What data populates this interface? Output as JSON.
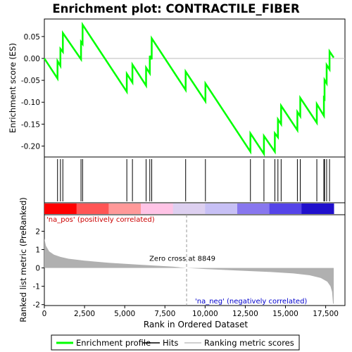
{
  "chart_data": {
    "type": "line",
    "title": "Enrichment plot: CONTRACTILE_FIBER",
    "top_panel": {
      "ylabel": "Enrichment score (ES)",
      "ylim": [
        -0.225,
        0.09
      ],
      "yticks": [
        0.05,
        0.0,
        -0.05,
        -0.1,
        -0.15,
        -0.2
      ],
      "ytick_labels": [
        "0.05",
        "0.00",
        "-0.05",
        "-0.10",
        "-0.15",
        "-0.20"
      ],
      "series": [
        {
          "name": "Enrichment profile",
          "color": "#00ff00",
          "points": [
            [
              0,
              0.0
            ],
            [
              820,
              -0.046
            ],
            [
              820,
              -0.006
            ],
            [
              1000,
              -0.017
            ],
            [
              1000,
              0.022
            ],
            [
              1150,
              0.015
            ],
            [
              1150,
              0.058
            ],
            [
              2280,
              -0.002
            ],
            [
              2280,
              0.038
            ],
            [
              2380,
              0.033
            ],
            [
              2380,
              0.077
            ],
            [
              5130,
              -0.076
            ],
            [
              5130,
              -0.035
            ],
            [
              5480,
              -0.055
            ],
            [
              5480,
              -0.014
            ],
            [
              6330,
              -0.062
            ],
            [
              6330,
              -0.021
            ],
            [
              6560,
              -0.034
            ],
            [
              6560,
              0.006
            ],
            [
              6680,
              -0.002
            ],
            [
              6680,
              0.046
            ],
            [
              8790,
              -0.072
            ],
            [
              8790,
              -0.03
            ],
            [
              10020,
              -0.098
            ],
            [
              10020,
              -0.057
            ],
            [
              12820,
              -0.213
            ],
            [
              12820,
              -0.171
            ],
            [
              13660,
              -0.218
            ],
            [
              13660,
              -0.177
            ],
            [
              14340,
              -0.213
            ],
            [
              14340,
              -0.171
            ],
            [
              14530,
              -0.18
            ],
            [
              14530,
              -0.139
            ],
            [
              14730,
              -0.15
            ],
            [
              14730,
              -0.108
            ],
            [
              15740,
              -0.164
            ],
            [
              15740,
              -0.122
            ],
            [
              15920,
              -0.132
            ],
            [
              15920,
              -0.09
            ],
            [
              16950,
              -0.147
            ],
            [
              16950,
              -0.104
            ],
            [
              17390,
              -0.131
            ],
            [
              17390,
              -0.09
            ],
            [
              17430,
              -0.092
            ],
            [
              17430,
              -0.049
            ],
            [
              17560,
              -0.057
            ],
            [
              17560,
              -0.015
            ],
            [
              17740,
              -0.025
            ],
            [
              17740,
              0.016
            ],
            [
              18000,
              0.002
            ]
          ]
        }
      ]
    },
    "hits": {
      "name": "Hits",
      "positions": [
        820,
        1000,
        1150,
        2280,
        2380,
        5130,
        5480,
        6330,
        6560,
        6680,
        8790,
        10020,
        12820,
        13660,
        14340,
        14530,
        14730,
        15740,
        15920,
        16950,
        17390,
        17430,
        17560,
        17740
      ]
    },
    "bottom_panel": {
      "ylabel": "Ranked list metric (PreRanked)",
      "xlabel": "Rank in Ordered Dataset",
      "xlim": [
        0,
        18700
      ],
      "ylim": [
        -2.05,
        2.9
      ],
      "xticks": [
        0,
        2500,
        5000,
        7500,
        10000,
        12500,
        15000,
        17500
      ],
      "xtick_labels": [
        "0",
        "2,500",
        "5,000",
        "7,500",
        "10,000",
        "12,500",
        "15,000",
        "17,500"
      ],
      "yticks": [
        2,
        1,
        0,
        -1,
        -2
      ],
      "ytick_labels": [
        "2",
        "1",
        "0",
        "-1",
        "-2"
      ],
      "metric_curve": [
        [
          0,
          1.6
        ],
        [
          100,
          1.2
        ],
        [
          300,
          0.9
        ],
        [
          600,
          0.72
        ],
        [
          1000,
          0.6
        ],
        [
          1500,
          0.5
        ],
        [
          2500,
          0.4
        ],
        [
          4000,
          0.28
        ],
        [
          6000,
          0.17
        ],
        [
          8000,
          0.07
        ],
        [
          8849,
          0.0
        ],
        [
          10000,
          -0.06
        ],
        [
          12000,
          -0.14
        ],
        [
          14000,
          -0.22
        ],
        [
          15500,
          -0.3
        ],
        [
          16500,
          -0.4
        ],
        [
          17200,
          -0.55
        ],
        [
          17600,
          -0.75
        ],
        [
          17800,
          -1.0
        ],
        [
          17900,
          -1.3
        ],
        [
          17960,
          -1.95
        ],
        [
          18000,
          -1.95
        ]
      ],
      "metric_color": "#b0b0b0",
      "zero_cross_label": "Zero cross at 8849",
      "zero_cross": 8849,
      "pos_label": "'na_pos' (positively correlated)",
      "neg_label": "'na_neg' (negatively correlated)",
      "pos_color": "#cc0000",
      "neg_color": "#0000cc"
    },
    "x_max_rank": 18000,
    "legend": {
      "placement": "bottom",
      "entries": [
        {
          "label": "Enrichment profile",
          "color": "#00ff00",
          "kind": "line"
        },
        {
          "label": "Hits",
          "color": "#000000",
          "kind": "line"
        },
        {
          "label": "Ranking metric scores",
          "color": "#c0c0c0",
          "kind": "line"
        }
      ]
    },
    "color_bar": {
      "stops": [
        "#ff0000",
        "#ff5555",
        "#ff9999",
        "#ffc4e6",
        "#ddd0f0",
        "#c7c0f5",
        "#8877ee",
        "#5544e8",
        "#2010cc"
      ]
    }
  }
}
